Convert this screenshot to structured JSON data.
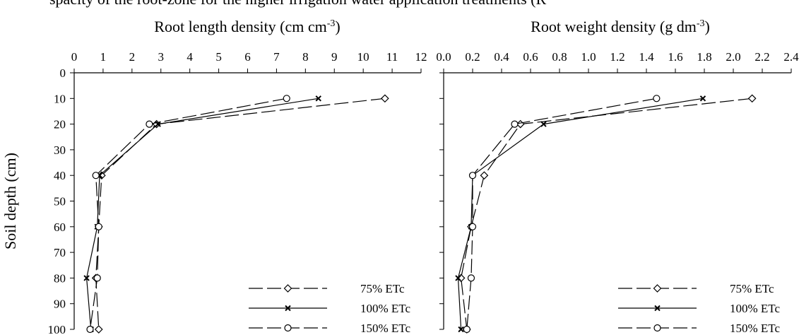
{
  "top_text": "spacity of the root-zone for the higher irrigation water application treatments (R",
  "ylabel": "Soil depth (cm)",
  "chart_data": [
    {
      "type": "line",
      "title": "Root length density (cm cm⁻³)",
      "xlabel": "",
      "ylabel": "Soil depth (cm)",
      "xlim": [
        0,
        12
      ],
      "ylim": [
        0,
        100
      ],
      "xticks": [
        "0",
        "1",
        "2",
        "3",
        "4",
        "5",
        "6",
        "7",
        "8",
        "9",
        "10",
        "11",
        "12"
      ],
      "yticks": [
        "0",
        "10",
        "20",
        "30",
        "40",
        "50",
        "60",
        "70",
        "80",
        "90",
        "100"
      ],
      "grid": false,
      "legend": "bottom-right",
      "series": [
        {
          "name": "75% ETc",
          "marker": "diamond",
          "dash": "dashed",
          "x": [
            10.75,
            2.85,
            0.95,
            0.85,
            0.75,
            0.85
          ],
          "y": [
            10,
            20,
            40,
            60,
            80,
            100
          ]
        },
        {
          "name": "100% ETc",
          "marker": "cross",
          "dash": "solid",
          "x": [
            8.45,
            2.9,
            0.88,
            0.8,
            0.43,
            0.58
          ],
          "y": [
            10,
            20,
            40,
            60,
            80,
            100
          ]
        },
        {
          "name": "150% ETc",
          "marker": "circle",
          "dash": "dashed",
          "x": [
            7.35,
            2.6,
            0.75,
            0.85,
            0.8,
            0.55
          ],
          "y": [
            10,
            20,
            40,
            60,
            80,
            100
          ]
        }
      ]
    },
    {
      "type": "line",
      "title": "Root weight density (g dm⁻³)",
      "xlabel": "",
      "ylabel": "",
      "xlim": [
        0,
        2.4
      ],
      "ylim": [
        0,
        100
      ],
      "xticks": [
        "0.0",
        "0.2",
        "0.4",
        "0.6",
        "0.8",
        "1.0",
        "1.2",
        "1.4",
        "1.6",
        "1.8",
        "2.0",
        "2.2",
        "2.4"
      ],
      "yticks": [
        "0",
        "10",
        "20",
        "30",
        "40",
        "50",
        "60",
        "70",
        "80",
        "90",
        "100"
      ],
      "grid": false,
      "legend": "bottom-right",
      "series": [
        {
          "name": "75% ETc",
          "marker": "diamond",
          "dash": "dashed",
          "x": [
            2.13,
            0.53,
            0.28,
            0.19,
            0.12,
            0.16
          ],
          "y": [
            10,
            20,
            40,
            60,
            80,
            100
          ]
        },
        {
          "name": "100% ETc",
          "marker": "cross",
          "dash": "solid",
          "x": [
            1.79,
            0.69,
            0.2,
            0.19,
            0.1,
            0.12
          ],
          "y": [
            10,
            20,
            40,
            60,
            80,
            100
          ]
        },
        {
          "name": "150% ETc",
          "marker": "circle",
          "dash": "dashed",
          "x": [
            1.47,
            0.49,
            0.2,
            0.2,
            0.19,
            0.16
          ],
          "y": [
            10,
            20,
            40,
            60,
            80,
            100
          ]
        }
      ]
    }
  ]
}
